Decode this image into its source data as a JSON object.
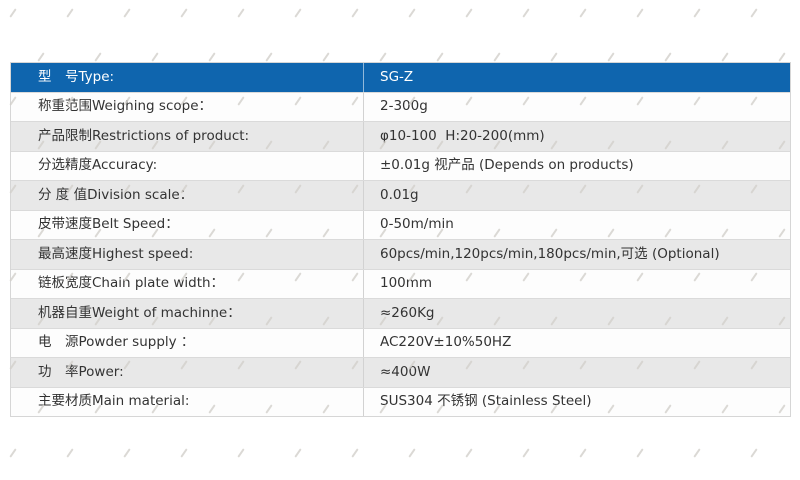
{
  "colors": {
    "header_bg": "#0f65ae",
    "header_text": "#ffffff",
    "row_white": "#fdfdfd",
    "row_gray": "#e8e8e8",
    "table_border": "#d6d6d6",
    "body_text": "#333333",
    "watermark_mark": "#d2cfca"
  },
  "table": {
    "header": {
      "label": "型　号Type:",
      "value": "SG-Z"
    },
    "rows": [
      {
        "label": "称重范围Weighing scope：",
        "value": "2-300g"
      },
      {
        "label": "产品限制Restrictions of product:",
        "value": "φ10-100  H:20-200(mm)"
      },
      {
        "label": "分选精度Accuracy:",
        "value": "±0.01g 视产品 (Depends on products)"
      },
      {
        "label": "分 度 值Division scale：",
        "value": "0.01g"
      },
      {
        "label": "皮带速度Belt Speed：",
        "value": "0-50m/min"
      },
      {
        "label": "最高速度Highest speed:",
        "value": "60pcs/min,120pcs/min,180pcs/min,可选 (Optional)"
      },
      {
        "label": "链板宽度Chain plate width：",
        "value": "100mm"
      },
      {
        "label": "机器自重Weight of machinne：",
        "value": "≈260Kg"
      },
      {
        "label": "电　源Powder supply ：",
        "value": "AC220V±10%50HZ"
      },
      {
        "label": "功　率Power:",
        "value": "≈400W"
      },
      {
        "label": "主要材质Main material:",
        "value": "SUS304 不锈钢 (Stainless Steel)"
      }
    ]
  }
}
